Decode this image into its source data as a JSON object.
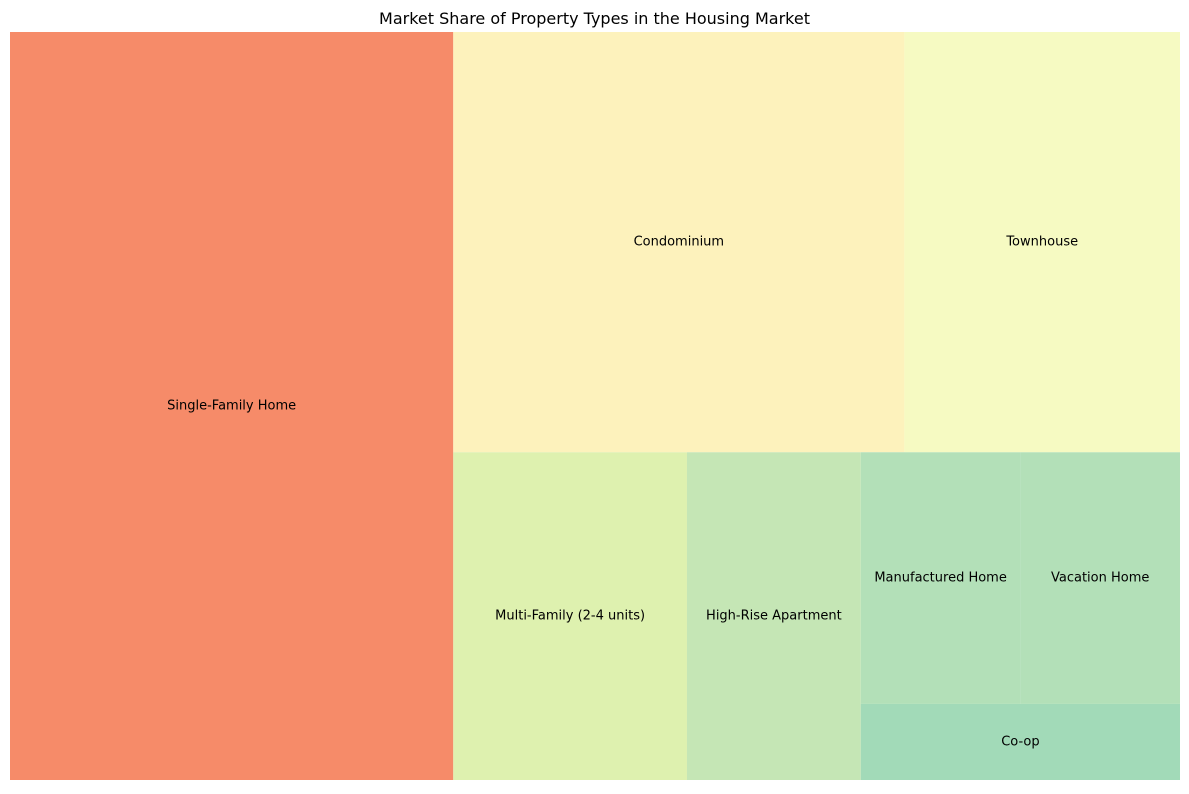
{
  "chart_data": {
    "type": "treemap",
    "title": "Market Share of Property Types in the Housing Market",
    "categories": [
      "Single-Family Home",
      "Condominium",
      "Townhouse",
      "Multi-Family (2-4 units)",
      "High-Rise Apartment",
      "Manufactured Home",
      "Vacation Home",
      "Co-op"
    ],
    "values": [
      35.5,
      20.3,
      12.4,
      8.2,
      6.1,
      4.3,
      4.3,
      2.6
    ],
    "colors": [
      "#f68b69",
      "#fdf2bc",
      "#f6fac2",
      "#def1af",
      "#c5e6b5",
      "#b3e0b8",
      "#b3e0b8",
      "#a2dab8"
    ],
    "xlabel": "",
    "ylabel": "",
    "legend": "none",
    "grid": false
  }
}
